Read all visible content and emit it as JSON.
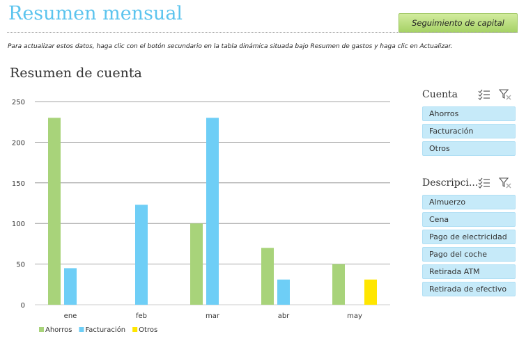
{
  "header": {
    "title": "Resumen mensual",
    "capital_button": "Seguimiento de capital",
    "instructions": "Para actualizar estos datos, haga clic con el botón secundario en la tabla dinámica situada bajo Resumen de gastos y haga clic en Actualizar."
  },
  "chart_data": {
    "type": "bar",
    "title": "Resumen de cuenta",
    "categories": [
      "ene",
      "feb",
      "mar",
      "abr",
      "may"
    ],
    "series": [
      {
        "name": "Ahorros",
        "color": "#a8d37a",
        "values": [
          230,
          0,
          100,
          70,
          50
        ]
      },
      {
        "name": "Facturación",
        "color": "#6ecef6",
        "values": [
          45,
          123,
          230,
          31,
          0
        ]
      },
      {
        "name": "Otros",
        "color": "#ffe600",
        "values": [
          0,
          0,
          0,
          0,
          31
        ]
      }
    ],
    "yticks": [
      0,
      50,
      100,
      150,
      200,
      250
    ],
    "ylim": [
      0,
      250
    ],
    "grid": true,
    "legend_position": "bottom-left"
  },
  "slicers": {
    "cuenta": {
      "title": "Cuenta",
      "items": [
        "Ahorros",
        "Facturación",
        "Otros"
      ]
    },
    "descripcion": {
      "title": "Descripci...",
      "items": [
        "Almuerzo",
        "Cena",
        "Pago de electricidad",
        "Pago del coche",
        "Retirada ATM",
        "Retirada de efectivo"
      ]
    }
  },
  "icons": {
    "multiselect": "multi-select-icon",
    "clear_filter": "clear-filter-icon"
  }
}
